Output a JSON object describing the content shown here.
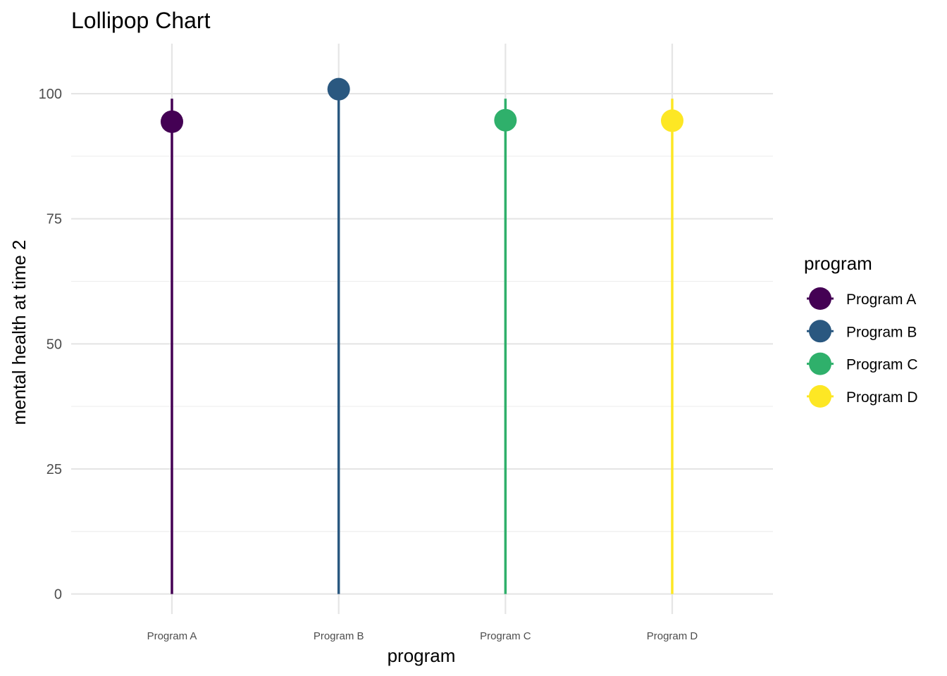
{
  "chart_data": {
    "type": "lollipop",
    "title": "Lollipop Chart",
    "xlabel": "program",
    "ylabel": "mental health at time 2",
    "categories": [
      "Program A",
      "Program B",
      "Program C",
      "Program D"
    ],
    "values": [
      94.4,
      100.9,
      94.7,
      94.6
    ],
    "segment_top": [
      99,
      99,
      99,
      99
    ],
    "colors": [
      "#440154",
      "#2a5880",
      "#2fb06b",
      "#fde724"
    ],
    "point_colors": [
      "#440154",
      "#2a5880",
      "#2fb06b",
      "#fde724"
    ],
    "ylim": [
      -4,
      110
    ],
    "yticks": [
      0,
      25,
      50,
      75,
      100
    ],
    "ytick_labels": [
      "0",
      "25",
      "50",
      "75",
      "100"
    ],
    "grid": true,
    "legend": {
      "title": "program",
      "placement": "right",
      "entries": [
        "Program A",
        "Program B",
        "Program C",
        "Program D"
      ]
    }
  }
}
